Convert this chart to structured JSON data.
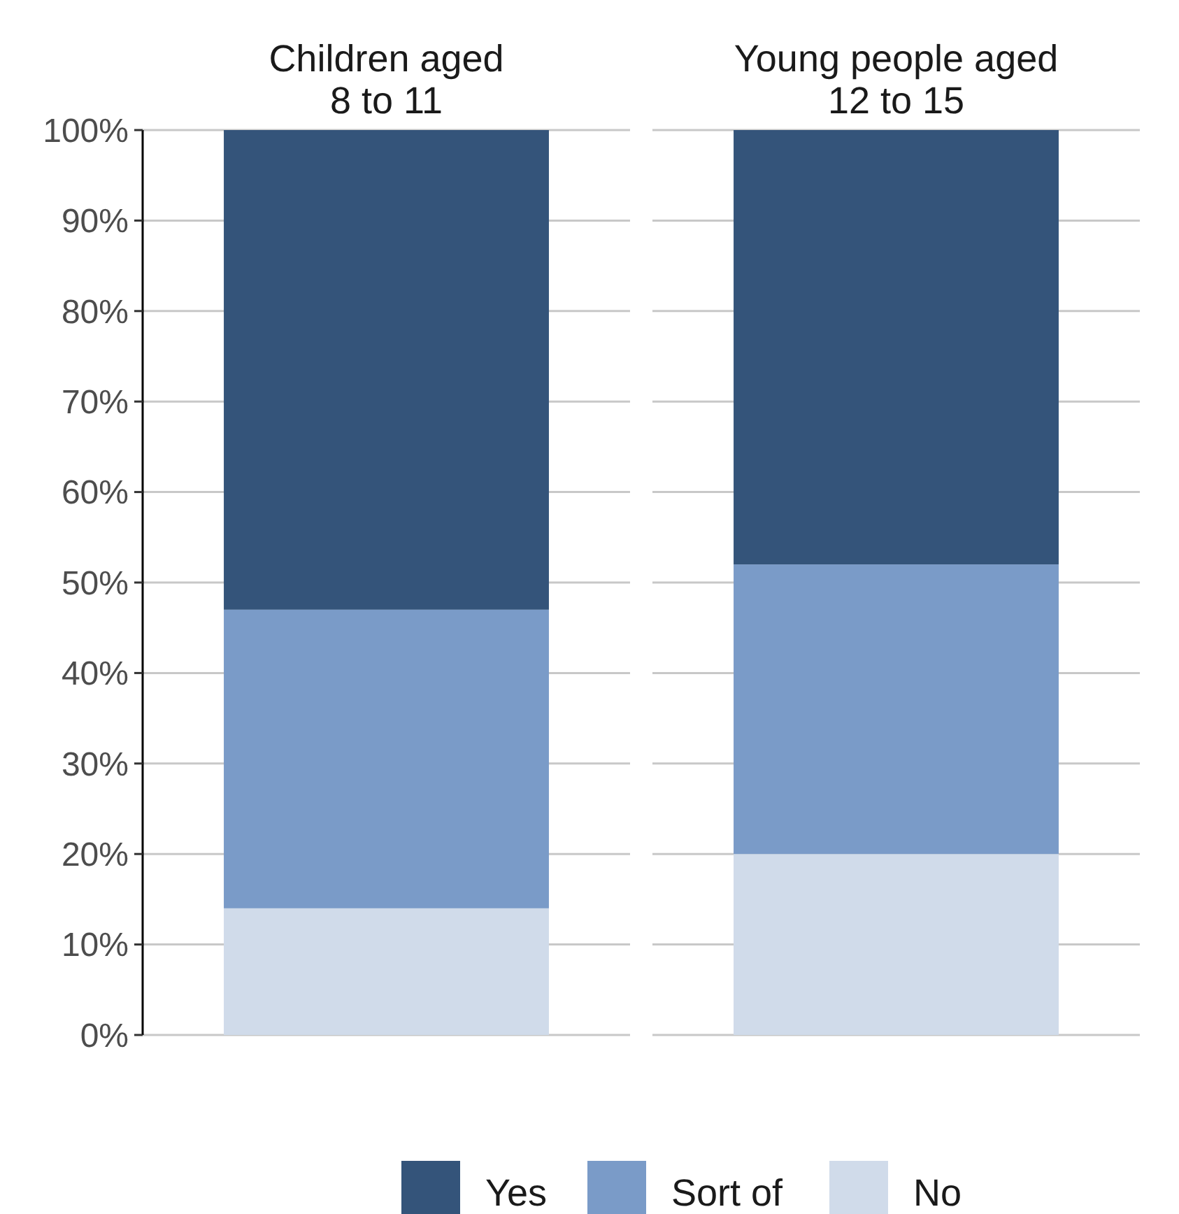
{
  "chart_data": {
    "type": "bar",
    "stacked": true,
    "categories": [
      "Children aged\n8 to 11",
      "Young people aged\n12 to 15"
    ],
    "series": [
      {
        "name": "No",
        "color": "#d0dbea",
        "values": [
          14,
          20
        ]
      },
      {
        "name": "Sort of",
        "color": "#7a9bc8",
        "values": [
          33,
          32
        ]
      },
      {
        "name": "Yes",
        "color": "#34547a",
        "values": [
          53,
          48
        ]
      }
    ],
    "ylim": [
      0,
      100
    ],
    "yticks": [
      {
        "value": 0,
        "label": "0%"
      },
      {
        "value": 10,
        "label": "10%"
      },
      {
        "value": 20,
        "label": "20%"
      },
      {
        "value": 30,
        "label": "30%"
      },
      {
        "value": 40,
        "label": "40%"
      },
      {
        "value": 50,
        "label": "50%"
      },
      {
        "value": 60,
        "label": "60%"
      },
      {
        "value": 70,
        "label": "70%"
      },
      {
        "value": 80,
        "label": "80%"
      },
      {
        "value": 90,
        "label": "90%"
      },
      {
        "value": 100,
        "label": "100%"
      }
    ],
    "grid": "y",
    "legend": "bottom"
  }
}
